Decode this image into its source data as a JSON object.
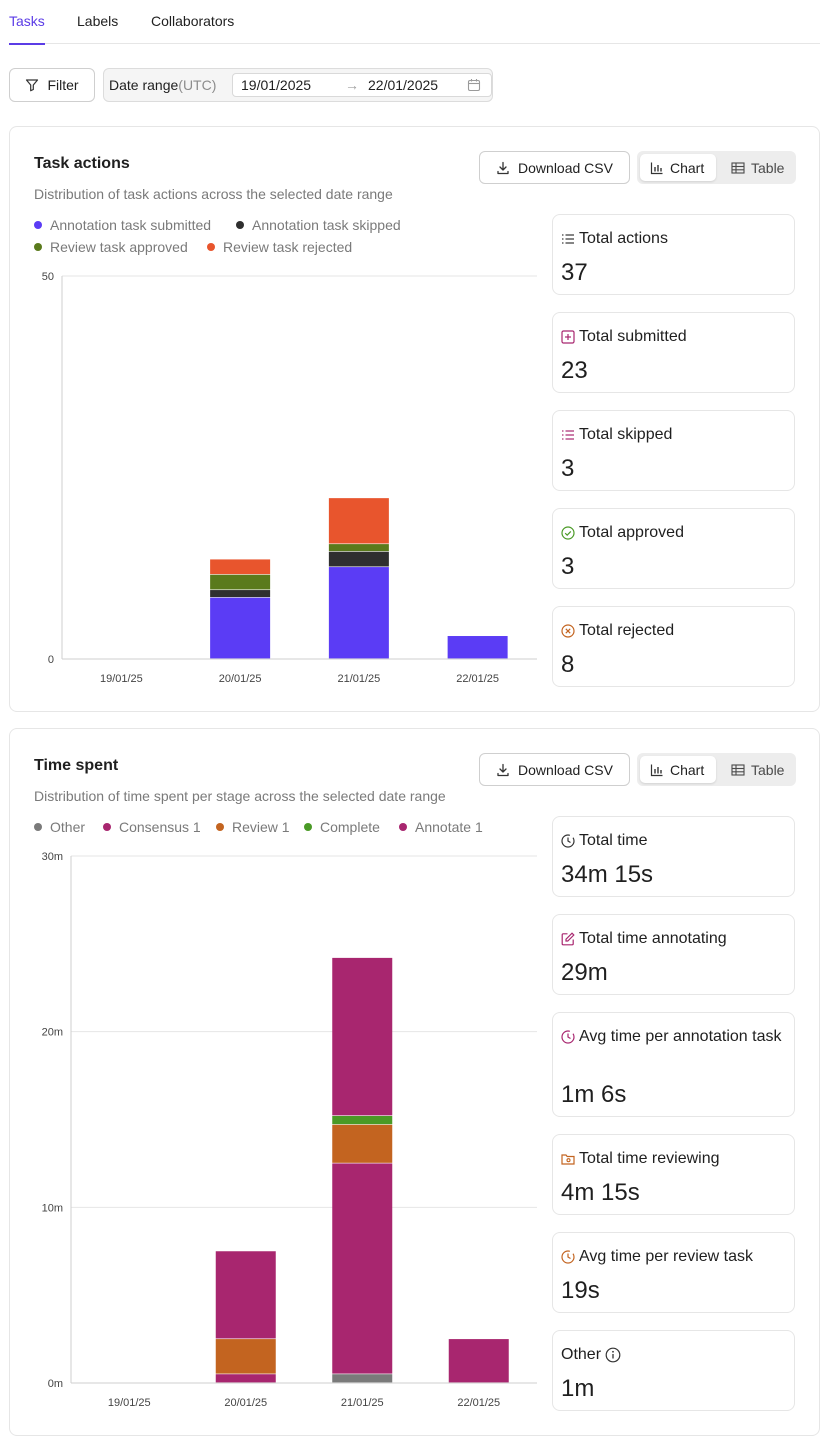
{
  "tabs": [
    {
      "label": "Tasks",
      "active": true
    },
    {
      "label": "Labels",
      "active": false
    },
    {
      "label": "Collaborators",
      "active": false
    }
  ],
  "toolbar": {
    "filter_label": "Filter",
    "date_range_label": "Date range",
    "date_range_tz": "(UTC)",
    "date_from": "19/01/2025",
    "date_to": "22/01/2025",
    "arrow": "→"
  },
  "task_actions": {
    "title": "Task actions",
    "subtitle": "Distribution of task actions across the selected date range",
    "download_label": "Download CSV",
    "chart_label": "Chart",
    "table_label": "Table",
    "legend": [
      {
        "label": "Annotation task submitted",
        "color": "#5b3cf5"
      },
      {
        "label": "Annotation task skipped",
        "color": "#2f2f2f"
      },
      {
        "label": "Review task approved",
        "color": "#5a7a1c"
      },
      {
        "label": "Review task rejected",
        "color": "#e8552d"
      }
    ],
    "stats": [
      {
        "label": "Total actions",
        "value": "37",
        "icon": "list-icon"
      },
      {
        "label": "Total submitted",
        "value": "23",
        "icon": "plus-square-icon"
      },
      {
        "label": "Total skipped",
        "value": "3",
        "icon": "list-icon"
      },
      {
        "label": "Total approved",
        "value": "3",
        "icon": "check-circle-icon"
      },
      {
        "label": "Total rejected",
        "value": "8",
        "icon": "x-circle-icon"
      }
    ]
  },
  "time_spent": {
    "title": "Time spent",
    "subtitle": "Distribution of time spent per stage across the selected date range",
    "download_label": "Download CSV",
    "chart_label": "Chart",
    "table_label": "Table",
    "legend": [
      {
        "label": "Other",
        "color": "#7a7a7a"
      },
      {
        "label": "Consensus 1",
        "color": "#a8266f"
      },
      {
        "label": "Review 1",
        "color": "#c36420"
      },
      {
        "label": "Complete",
        "color": "#4a9a26"
      },
      {
        "label": "Annotate 1",
        "color": "#a8266f"
      }
    ],
    "stats": [
      {
        "label": "Total time",
        "value": "34m 15s",
        "icon": "clock-icon"
      },
      {
        "label": "Total time annotating",
        "value": "29m",
        "icon": "edit-icon"
      },
      {
        "label": "Avg time per annotation task",
        "value": "1m 6s",
        "icon": "clock-icon"
      },
      {
        "label": "Total time reviewing",
        "value": "4m 15s",
        "icon": "folder-eye-icon"
      },
      {
        "label": "Avg time per review task",
        "value": "19s",
        "icon": "clock-icon"
      },
      {
        "label": "Other",
        "value": "1m",
        "icon": "info-icon"
      }
    ]
  },
  "chart_data": [
    {
      "type": "bar",
      "stacked": true,
      "categories": [
        "19/01/25",
        "20/01/25",
        "21/01/25",
        "22/01/25"
      ],
      "ylim": [
        0,
        50
      ],
      "yticks": [
        "0",
        "50"
      ],
      "series": [
        {
          "name": "Annotation task submitted",
          "color": "#5b3cf5",
          "values": [
            0,
            8,
            12,
            3
          ]
        },
        {
          "name": "Annotation task skipped",
          "color": "#2f2f2f",
          "values": [
            0,
            1,
            2,
            0
          ]
        },
        {
          "name": "Review task approved",
          "color": "#5a7a1c",
          "values": [
            0,
            2,
            1,
            0
          ]
        },
        {
          "name": "Review task rejected",
          "color": "#e8552d",
          "values": [
            0,
            2,
            6,
            0
          ]
        }
      ]
    },
    {
      "type": "bar",
      "stacked": true,
      "categories": [
        "19/01/25",
        "20/01/25",
        "21/01/25",
        "22/01/25"
      ],
      "ylim": [
        0,
        30
      ],
      "yticks": [
        "0m",
        "10m",
        "20m",
        "30m"
      ],
      "series": [
        {
          "name": "Other",
          "color": "#7a7a7a",
          "values": [
            0,
            0,
            0.5,
            0
          ]
        },
        {
          "name": "Consensus 1",
          "color": "#a8266f",
          "values": [
            0,
            0.5,
            12,
            0
          ]
        },
        {
          "name": "Review 1",
          "color": "#c36420",
          "values": [
            0,
            2,
            2.2,
            0
          ]
        },
        {
          "name": "Complete",
          "color": "#4a9a26",
          "values": [
            0,
            0,
            0.5,
            0
          ]
        },
        {
          "name": "Annotate 1",
          "color": "#a8266f",
          "values": [
            0,
            5,
            9,
            2.5
          ]
        }
      ]
    }
  ]
}
